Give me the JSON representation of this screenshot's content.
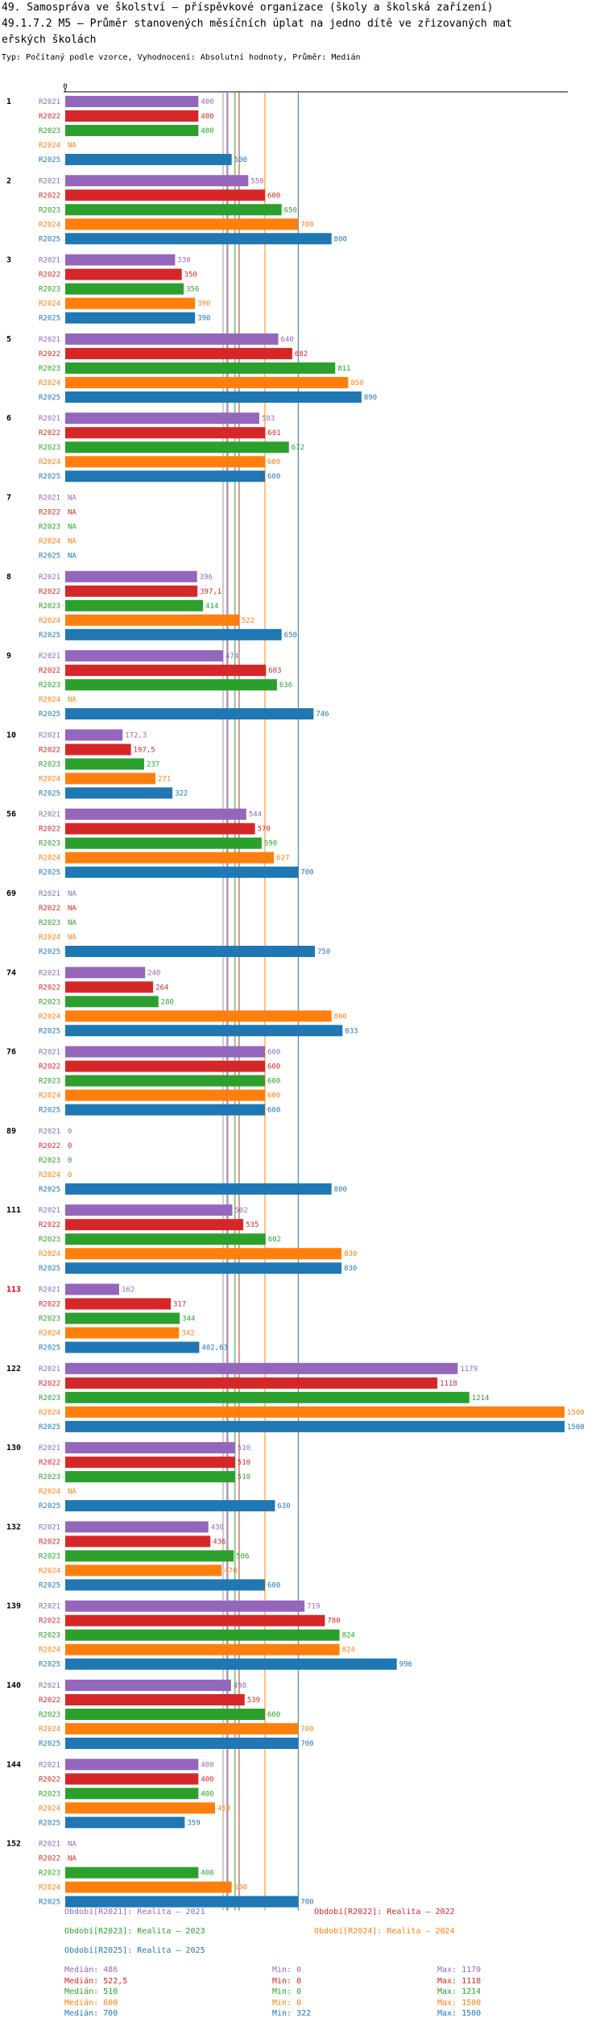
{
  "title_lines": [
    "49. Samospráva ve školství – příspěvkové organizace (školy a školská zařízení)",
    "49.1.7.2 M5 – Průměr stanovených měsíčních úplat na jedno dítě ve zřizovaných mat",
    "eřských školách"
  ],
  "subtitle": "Typ: Počítaný podle vzorce, Vyhodnocení: Absolutní hodnoty, Průměr: Medián",
  "chart_data": {
    "type": "bar",
    "orientation": "horizontal",
    "axis_zero_label": "0",
    "series": [
      {
        "key": "R2021",
        "name": "R2021",
        "color": "#9467bd"
      },
      {
        "key": "R2022",
        "name": "R2022",
        "color": "#d62728"
      },
      {
        "key": "R2023",
        "name": "R2023",
        "color": "#2ca02c"
      },
      {
        "key": "R2024",
        "name": "R2024",
        "color": "#ff7f0e"
      },
      {
        "key": "R2025",
        "name": "R2025",
        "color": "#1f77b4"
      }
    ],
    "groups": [
      {
        "label": "1",
        "highlight": false,
        "values": [
          400,
          400,
          400,
          null,
          500
        ],
        "labels": [
          "400",
          "400",
          "400",
          "NA",
          "500"
        ]
      },
      {
        "label": "2",
        "highlight": false,
        "values": [
          550,
          600,
          650,
          700,
          800
        ],
        "labels": [
          "550",
          "600",
          "650",
          "700",
          "800"
        ]
      },
      {
        "label": "3",
        "highlight": false,
        "values": [
          330,
          350,
          356,
          390,
          390
        ],
        "labels": [
          "330",
          "350",
          "356",
          "390",
          "390"
        ]
      },
      {
        "label": "5",
        "highlight": false,
        "values": [
          640,
          682,
          811,
          850,
          890
        ],
        "labels": [
          "640",
          "682",
          "811",
          "850",
          "890"
        ]
      },
      {
        "label": "6",
        "highlight": false,
        "values": [
          583,
          601,
          672,
          600,
          600
        ],
        "labels": [
          "583",
          "601",
          "672",
          "600",
          "600"
        ]
      },
      {
        "label": "7",
        "highlight": false,
        "values": [
          null,
          null,
          null,
          null,
          null
        ],
        "labels": [
          "NA",
          "NA",
          "NA",
          "NA",
          "NA"
        ]
      },
      {
        "label": "8",
        "highlight": false,
        "values": [
          396,
          397.1,
          414,
          522,
          650
        ],
        "labels": [
          "396",
          "397,1",
          "414",
          "522",
          "650"
        ]
      },
      {
        "label": "9",
        "highlight": false,
        "values": [
          474,
          603,
          636,
          null,
          746
        ],
        "labels": [
          "474",
          "603",
          "636",
          "NA",
          "746"
        ]
      },
      {
        "label": "10",
        "highlight": false,
        "values": [
          172.3,
          197.5,
          237,
          271,
          322
        ],
        "labels": [
          "172,3",
          "197,5",
          "237",
          "271",
          "322"
        ]
      },
      {
        "label": "56",
        "highlight": false,
        "values": [
          544,
          570,
          590,
          627,
          700
        ],
        "labels": [
          "544",
          "570",
          "590",
          "627",
          "700"
        ]
      },
      {
        "label": "69",
        "highlight": false,
        "values": [
          null,
          null,
          null,
          null,
          750
        ],
        "labels": [
          "NA",
          "NA",
          "NA",
          "NA",
          "750"
        ]
      },
      {
        "label": "74",
        "highlight": false,
        "values": [
          240,
          264,
          280,
          800,
          833
        ],
        "labels": [
          "240",
          "264",
          "280",
          "800",
          "833"
        ]
      },
      {
        "label": "76",
        "highlight": false,
        "values": [
          600,
          600,
          600,
          600,
          600
        ],
        "labels": [
          "600",
          "600",
          "600",
          "600",
          "600"
        ]
      },
      {
        "label": "89",
        "highlight": false,
        "values": [
          0,
          0,
          0,
          0,
          800
        ],
        "labels": [
          "0",
          "0",
          "0",
          "0",
          "800"
        ]
      },
      {
        "label": "111",
        "highlight": false,
        "values": [
          502,
          535,
          602,
          830,
          830
        ],
        "labels": [
          "502",
          "535",
          "602",
          "830",
          "830"
        ]
      },
      {
        "label": "113",
        "highlight": true,
        "values": [
          162,
          317,
          344,
          342,
          402.63
        ],
        "labels": [
          "162",
          "317",
          "344",
          "342",
          "402,63"
        ]
      },
      {
        "label": "122",
        "highlight": false,
        "values": [
          1179,
          1118,
          1214,
          1500,
          1500
        ],
        "labels": [
          "1179",
          "1118",
          "1214",
          "1500",
          "1500"
        ]
      },
      {
        "label": "130",
        "highlight": false,
        "values": [
          510,
          510,
          510,
          null,
          630
        ],
        "labels": [
          "510",
          "510",
          "510",
          "NA",
          "630"
        ]
      },
      {
        "label": "132",
        "highlight": false,
        "values": [
          430,
          436,
          506,
          470,
          600
        ],
        "labels": [
          "430",
          "436",
          "506",
          "470",
          "600"
        ]
      },
      {
        "label": "139",
        "highlight": false,
        "values": [
          719,
          780,
          824,
          824,
          996
        ],
        "labels": [
          "719",
          "780",
          "824",
          "824",
          "996"
        ]
      },
      {
        "label": "140",
        "highlight": false,
        "values": [
          498,
          539,
          600,
          700,
          700
        ],
        "labels": [
          "498",
          "539",
          "600",
          "700",
          "700"
        ]
      },
      {
        "label": "144",
        "highlight": false,
        "values": [
          400,
          400,
          400,
          450,
          359
        ],
        "labels": [
          "400",
          "400",
          "400",
          "450",
          "359"
        ]
      },
      {
        "label": "152",
        "highlight": false,
        "values": [
          null,
          null,
          400,
          500,
          700
        ],
        "labels": [
          "NA",
          "NA",
          "400",
          "500",
          "700"
        ]
      }
    ],
    "medians": [
      486,
      522.5,
      510,
      600,
      700
    ],
    "legend": {
      "periods": [
        "Období[R2021]: Realita – 2021",
        "Období[R2022]: Realita – 2022",
        "Období[R2023]: Realita – 2023",
        "Období[R2024]: Realita – 2024",
        "Období[R2025]: Realita – 2025"
      ],
      "stats": [
        {
          "median": "Medián: 486",
          "min": "Min: 0",
          "max": "Max: 1179"
        },
        {
          "median": "Medián: 522,5",
          "min": "Min: 0",
          "max": "Max: 1118"
        },
        {
          "median": "Medián: 510",
          "min": "Min: 0",
          "max": "Max: 1214"
        },
        {
          "median": "Medián: 600",
          "min": "Min: 0",
          "max": "Max: 1500"
        },
        {
          "median": "Medián: 700",
          "min": "Min: 322",
          "max": "Max: 1500"
        }
      ]
    }
  }
}
